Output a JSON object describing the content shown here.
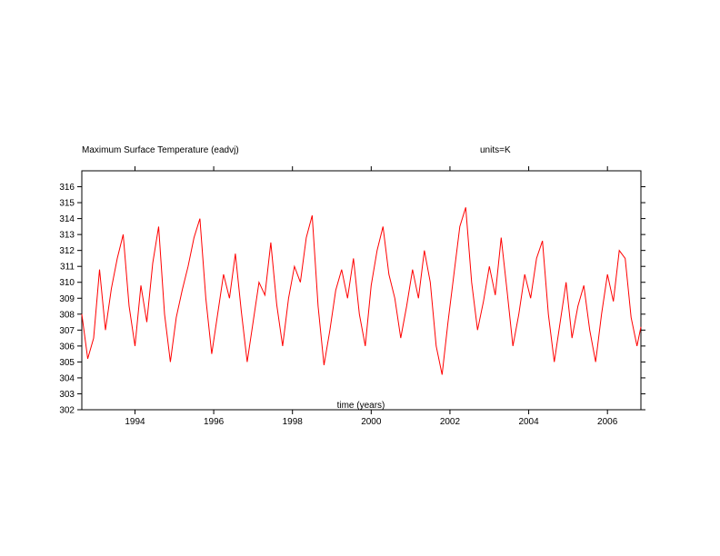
{
  "chart_data": {
    "type": "line",
    "title": "Maximum Surface Temperature (eadvj)",
    "units_label": "units=K",
    "xlabel": "time (years)",
    "ylabel": "",
    "xlim": [
      1992.65,
      2006.85
    ],
    "ylim": [
      302,
      317
    ],
    "x_ticks": [
      1994,
      1996,
      1998,
      2000,
      2002,
      2004,
      2006
    ],
    "x_tick_labels": [
      "1994",
      "1996",
      "1998",
      "2000",
      "2002",
      "2004",
      "2006"
    ],
    "y_ticks": [
      302,
      303,
      304,
      305,
      306,
      307,
      308,
      309,
      310,
      311,
      312,
      313,
      314,
      315,
      316
    ],
    "y_tick_labels": [
      "302",
      "303",
      "304",
      "305",
      "306",
      "307",
      "308",
      "309",
      "310",
      "311",
      "312",
      "313",
      "314",
      "315",
      "316"
    ],
    "grid": false,
    "legend": "none",
    "series": [
      {
        "color": "#ff0000",
        "x": [
          1992.65,
          1992.8,
          1992.95,
          1993.1,
          1993.25,
          1993.4,
          1993.55,
          1993.7,
          1993.85,
          1994.0,
          1994.15,
          1994.3,
          1994.45,
          1994.6,
          1994.75,
          1994.9,
          1995.05,
          1995.2,
          1995.35,
          1995.5,
          1995.65,
          1995.8,
          1995.95,
          1996.1,
          1996.25,
          1996.4,
          1996.55,
          1996.7,
          1996.85,
          1997.0,
          1997.15,
          1997.3,
          1997.45,
          1997.6,
          1997.75,
          1997.9,
          1998.05,
          1998.2,
          1998.35,
          1998.5,
          1998.65,
          1998.8,
          1998.95,
          1999.1,
          1999.25,
          1999.4,
          1999.55,
          1999.7,
          1999.85,
          2000.0,
          2000.15,
          2000.3,
          2000.45,
          2000.6,
          2000.75,
          2000.9,
          2001.05,
          2001.2,
          2001.35,
          2001.5,
          2001.65,
          2001.8,
          2001.95,
          2002.1,
          2002.25,
          2002.4,
          2002.55,
          2002.7,
          2002.85,
          2003.0,
          2003.15,
          2003.3,
          2003.45,
          2003.6,
          2003.75,
          2003.9,
          2004.05,
          2004.2,
          2004.35,
          2004.5,
          2004.65,
          2004.8,
          2004.95,
          2005.1,
          2005.25,
          2005.4,
          2005.55,
          2005.7,
          2005.85,
          2006.0,
          2006.15,
          2006.3,
          2006.45,
          2006.6,
          2006.75,
          2006.85
        ],
        "y": [
          308.0,
          305.2,
          306.5,
          310.8,
          307.0,
          309.6,
          311.5,
          313.0,
          308.5,
          306.0,
          309.8,
          307.5,
          311.2,
          313.5,
          308.0,
          305.0,
          307.8,
          309.5,
          311.0,
          312.8,
          314.0,
          309.0,
          305.5,
          308.0,
          310.5,
          309.0,
          311.8,
          308.2,
          305.0,
          307.5,
          310.0,
          309.2,
          312.5,
          308.6,
          306.0,
          309.0,
          311.0,
          310.0,
          312.8,
          314.2,
          308.5,
          304.8,
          307.0,
          309.5,
          310.8,
          309.0,
          311.5,
          308.0,
          306.0,
          309.8,
          312.0,
          313.5,
          310.5,
          309.0,
          306.5,
          308.5,
          310.8,
          309.0,
          312.0,
          310.0,
          306.0,
          304.2,
          307.5,
          310.5,
          313.5,
          314.7,
          310.0,
          307.0,
          308.8,
          311.0,
          309.2,
          312.8,
          309.5,
          306.0,
          308.0,
          310.5,
          309.0,
          311.5,
          312.6,
          308.0,
          305.0,
          307.5,
          310.0,
          306.5,
          308.5,
          309.8,
          307.0,
          305.0,
          308.0,
          310.5,
          308.8,
          312.0,
          311.5,
          307.8,
          306.0,
          307.2
        ]
      }
    ]
  }
}
